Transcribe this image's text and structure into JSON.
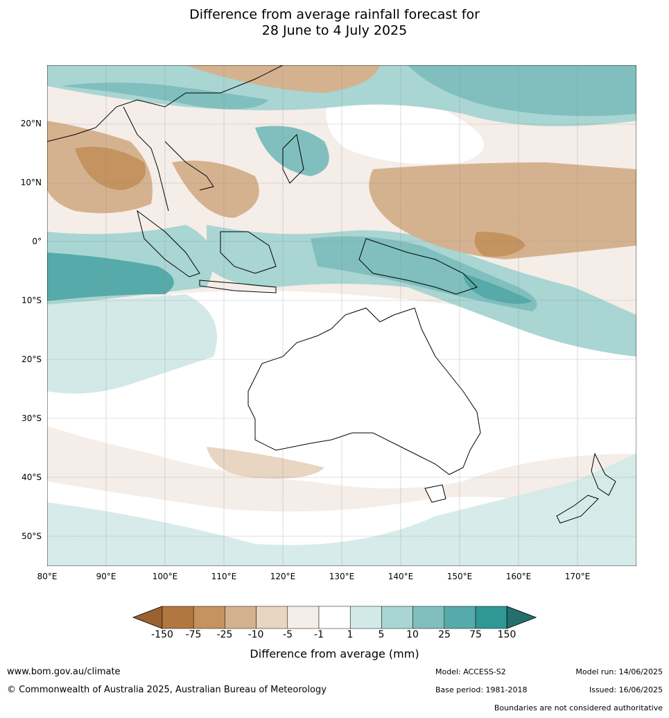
{
  "title_line1": "Difference from average rainfall forecast for",
  "title_line2": "28 June to 4 July 2025",
  "map": {
    "lon_labels": [
      "80°E",
      "90°E",
      "100°E",
      "110°E",
      "120°E",
      "130°E",
      "140°E",
      "150°E",
      "160°E",
      "170°E"
    ],
    "lat_labels": [
      "20°N",
      "10°N",
      "0°",
      "10°S",
      "20°S",
      "30°S",
      "40°S",
      "50°S"
    ],
    "lon_range": [
      80,
      180
    ],
    "lat_range": [
      -55,
      30
    ]
  },
  "legend": {
    "title": "Difference from average (mm)",
    "ticks": [
      "-150",
      "-75",
      "-25",
      "-10",
      "-5",
      "-1",
      "1",
      "5",
      "10",
      "25",
      "75",
      "150"
    ],
    "colors": [
      "#9a6230",
      "#b0773f",
      "#c4935f",
      "#d5b28f",
      "#e8d5c2",
      "#f5ede8",
      "#ffffff",
      "#d3e9e8",
      "#a9d5d3",
      "#80bfbe",
      "#56aaa9",
      "#2f9895",
      "#23706d"
    ]
  },
  "footer": {
    "url": "www.bom.gov.au/climate",
    "copyright": "© Commonwealth of Australia 2025, Australian Bureau of Meteorology",
    "model": "Model: ACCESS-S2",
    "base_period": "Base period: 1981-2018",
    "model_run": "Model run: 14/06/2025",
    "issued": "Issued: 16/06/2025",
    "disclaimer": "Boundaries are not considered authoritative"
  }
}
